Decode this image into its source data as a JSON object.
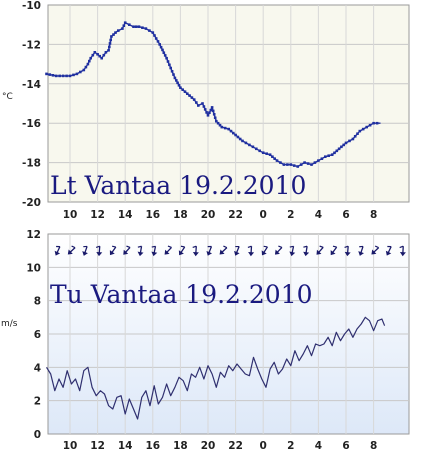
{
  "chart_data": [
    {
      "type": "line",
      "title": "",
      "overlay_label": "Lt Vantaa 19.2.2010",
      "ylabel": "°C",
      "xlabel": "",
      "ylim": [
        -20,
        -10
      ],
      "y_ticks": [
        -10,
        -12,
        -14,
        -16,
        -18,
        -20
      ],
      "x_tick_labels": [
        "10",
        "12",
        "14",
        "16",
        "18",
        "20",
        "22",
        "0",
        "2",
        "4",
        "6",
        "8"
      ],
      "grid": true,
      "background": "#f8f8ee",
      "line_color": "#2030a0",
      "markers": true,
      "series": [
        {
          "x": [
            8.3,
            9.0,
            9.5,
            10.0,
            10.5,
            11.0,
            11.3,
            11.5,
            11.8,
            12.0,
            12.3,
            12.6,
            12.8,
            13.0,
            13.3,
            13.5,
            13.8,
            14.0,
            14.3,
            14.6,
            15.0,
            15.5,
            16.0,
            16.5,
            17.0,
            17.3,
            17.6,
            18.0,
            18.5,
            19.0,
            19.3,
            19.6,
            20.0,
            20.3,
            20.6,
            21.0,
            21.5,
            22.0,
            22.5,
            23.0,
            23.5,
            24.0,
            24.5,
            25.0,
            25.5,
            26.0,
            26.5,
            27.0,
            27.5,
            28.0,
            28.5,
            29.0,
            29.5,
            30.0,
            30.5,
            31.0,
            31.5,
            32.0,
            32.5
          ],
          "y": [
            -13.5,
            -13.6,
            -13.6,
            -13.6,
            -13.5,
            -13.3,
            -13.0,
            -12.7,
            -12.4,
            -12.5,
            -12.7,
            -12.4,
            -12.3,
            -11.6,
            -11.4,
            -11.3,
            -11.2,
            -10.9,
            -11.0,
            -11.1,
            -11.1,
            -11.2,
            -11.4,
            -12.0,
            -12.7,
            -13.2,
            -13.7,
            -14.2,
            -14.5,
            -14.8,
            -15.1,
            -15.0,
            -15.6,
            -15.2,
            -15.9,
            -16.2,
            -16.3,
            -16.6,
            -16.9,
            -17.1,
            -17.3,
            -17.5,
            -17.6,
            -17.9,
            -18.1,
            -18.1,
            -18.2,
            -18.0,
            -18.1,
            -17.9,
            -17.7,
            -17.6,
            -17.3,
            -17.0,
            -16.8,
            -16.4,
            -16.2,
            -16.0,
            -16.0
          ]
        }
      ]
    },
    {
      "type": "line",
      "title": "",
      "overlay_label": "Tu Vantaa 19.2.2010",
      "ylabel": "m/s",
      "xlabel": "",
      "ylim": [
        0,
        12
      ],
      "y_ticks": [
        12,
        10,
        8,
        6,
        4,
        2,
        0
      ],
      "x_tick_labels": [
        "10",
        "12",
        "14",
        "16",
        "18",
        "20",
        "22",
        "0",
        "2",
        "4",
        "6",
        "8"
      ],
      "grid": true,
      "background_top": "#ffffff",
      "background_bottom": "#dde8f8",
      "line_color": "#303070",
      "wind_arrow_level": 11,
      "series": [
        {
          "x": [
            8.3,
            8.6,
            8.9,
            9.2,
            9.5,
            9.8,
            10.1,
            10.4,
            10.7,
            11.0,
            11.3,
            11.6,
            11.9,
            12.2,
            12.5,
            12.8,
            13.1,
            13.4,
            13.7,
            14.0,
            14.3,
            14.6,
            14.9,
            15.2,
            15.5,
            15.8,
            16.1,
            16.4,
            16.7,
            17.0,
            17.3,
            17.6,
            17.9,
            18.2,
            18.5,
            18.8,
            19.1,
            19.4,
            19.7,
            20.0,
            20.3,
            20.6,
            20.9,
            21.2,
            21.5,
            21.8,
            22.1,
            22.4,
            22.7,
            23.0,
            23.3,
            23.6,
            23.9,
            24.2,
            24.5,
            24.8,
            25.1,
            25.4,
            25.7,
            26.0,
            26.3,
            26.6,
            26.9,
            27.2,
            27.5,
            27.8,
            28.1,
            28.4,
            28.7,
            29.0,
            29.3,
            29.6,
            29.9,
            30.2,
            30.5,
            30.8,
            31.1,
            31.4,
            31.7,
            32.0,
            32.3,
            32.6,
            32.8
          ],
          "y": [
            4.0,
            3.6,
            2.6,
            3.3,
            2.8,
            3.8,
            3.0,
            3.3,
            2.6,
            3.8,
            4.0,
            2.8,
            2.3,
            2.6,
            2.4,
            1.7,
            1.5,
            2.2,
            2.3,
            1.2,
            2.1,
            1.5,
            0.9,
            2.2,
            2.6,
            1.7,
            2.9,
            1.8,
            2.2,
            3.0,
            2.3,
            2.8,
            3.4,
            3.2,
            2.6,
            3.6,
            3.4,
            4.0,
            3.3,
            4.1,
            3.6,
            2.8,
            3.7,
            3.4,
            4.1,
            3.8,
            4.2,
            3.9,
            3.6,
            3.5,
            4.6,
            3.9,
            3.3,
            2.8,
            3.9,
            4.3,
            3.6,
            3.9,
            4.5,
            4.1,
            5.0,
            4.4,
            4.8,
            5.3,
            4.7,
            5.4,
            5.3,
            5.4,
            5.8,
            5.3,
            6.1,
            5.6,
            6.0,
            6.3,
            5.8,
            6.3,
            6.6,
            7.0,
            6.8,
            6.2,
            6.8,
            6.9,
            6.5
          ]
        }
      ]
    }
  ]
}
